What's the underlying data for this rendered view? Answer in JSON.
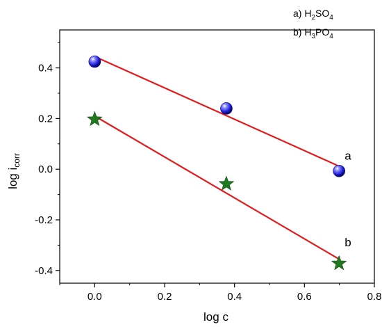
{
  "chart_data": {
    "type": "scatter",
    "title": "",
    "xlabel": "log c",
    "ylabel_main": "log i",
    "ylabel_sub": "corr",
    "xlim": [
      -0.1,
      0.8
    ],
    "ylim": [
      -0.45,
      0.55
    ],
    "xticks": [
      0.0,
      0.2,
      0.4,
      0.6,
      0.8
    ],
    "yticks": [
      -0.4,
      -0.2,
      0.0,
      0.2,
      0.4
    ],
    "xtick_labels": [
      "0.0",
      "0.2",
      "0.4",
      "0.6",
      "0.8"
    ],
    "ytick_labels": [
      "-0.4",
      "-0.2",
      "0.0",
      "0.2",
      "0.4"
    ],
    "grid": false,
    "series": [
      {
        "name": "a",
        "marker": "sphere",
        "color": "#1a1ad6",
        "x": [
          0.0,
          0.3767,
          0.699
        ],
        "y": [
          0.425,
          0.24,
          -0.007
        ],
        "fit": {
          "x": [
            0.0,
            0.699
          ],
          "y": [
            0.445,
            0.012
          ]
        }
      },
      {
        "name": "b",
        "marker": "star",
        "color": "#1f7a1f",
        "x": [
          0.0,
          0.3767,
          0.699
        ],
        "y": [
          0.197,
          -0.058,
          -0.372
        ],
        "fit": {
          "x": [
            0.0,
            0.699
          ],
          "y": [
            0.21,
            -0.355
          ]
        }
      }
    ],
    "fit_color": "#e41a1c",
    "annotations": [
      {
        "text": "a",
        "x": 0.715,
        "y": 0.038
      },
      {
        "text": "b",
        "x": 0.715,
        "y": -0.305
      }
    ],
    "legend": {
      "placement": "top-right",
      "items": [
        {
          "prefix": "a) H",
          "s1": "2",
          "mid": "SO",
          "s2": "4"
        },
        {
          "prefix": "b) H",
          "s1": "3",
          "mid": "PO",
          "s2": "4"
        }
      ]
    }
  }
}
